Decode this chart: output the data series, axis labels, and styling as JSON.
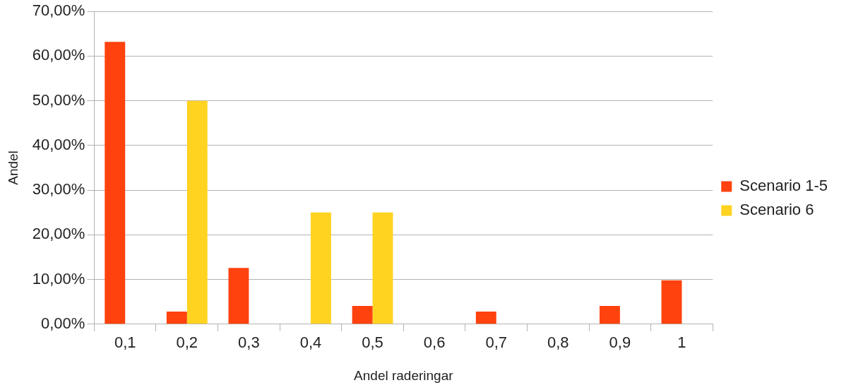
{
  "chart_data": {
    "type": "bar",
    "xlabel": "Andel raderingar",
    "ylabel": "Andel",
    "categories": [
      "0,1",
      "0,2",
      "0,3",
      "0,4",
      "0,5",
      "0,6",
      "0,7",
      "0,8",
      "0,9",
      "1"
    ],
    "series": [
      {
        "name": "Scenario 1-5",
        "color": "#ff420e",
        "values": [
          63.2,
          2.8,
          12.6,
          0,
          4.1,
          0,
          2.8,
          0,
          4.1,
          9.8
        ]
      },
      {
        "name": "Scenario 6",
        "color": "#ffd320",
        "values": [
          0,
          50,
          0,
          25,
          25,
          0,
          0,
          0,
          0,
          0
        ]
      }
    ],
    "ylim": [
      0,
      70
    ],
    "yticks": [
      {
        "value": 0,
        "label": "0,00%"
      },
      {
        "value": 10,
        "label": "10,00%"
      },
      {
        "value": 20,
        "label": "20,00%"
      },
      {
        "value": 30,
        "label": "30,00%"
      },
      {
        "value": 40,
        "label": "40,00%"
      },
      {
        "value": 50,
        "label": "50,00%"
      },
      {
        "value": 60,
        "label": "60,00%"
      },
      {
        "value": 70,
        "label": "70,00%"
      }
    ],
    "grid": "y",
    "legend": "right"
  }
}
